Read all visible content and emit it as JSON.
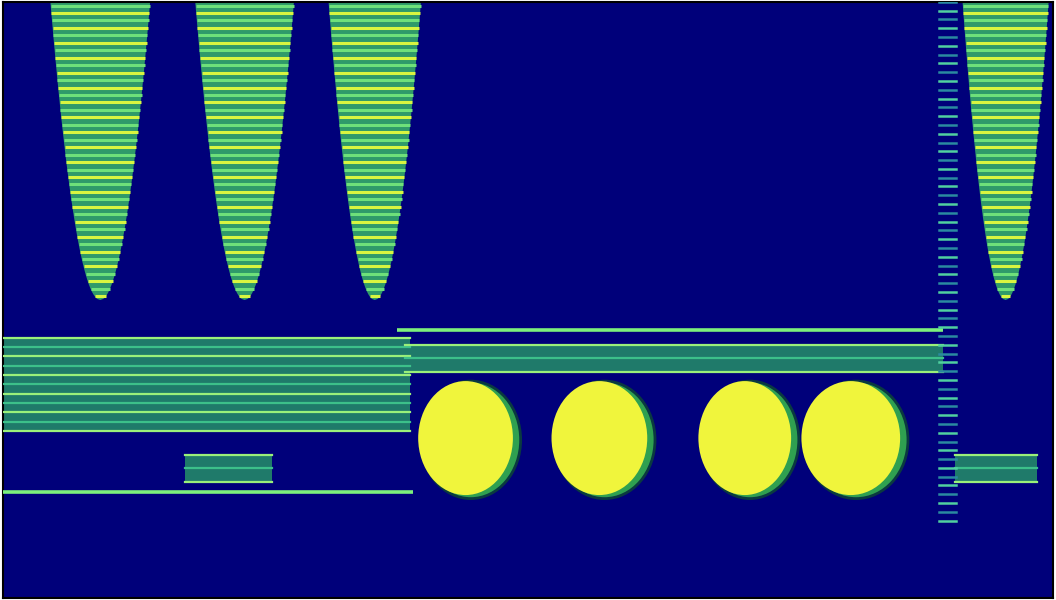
{
  "chart_data": {
    "type": "spectrogram",
    "tick_labels": false,
    "xlim": [
      0,
      100
    ],
    "ylim": [
      0,
      100
    ],
    "harmonic_sweeps": [
      {
        "t": [
          4.5,
          14.0
        ],
        "f": [
          50,
          100
        ]
      },
      {
        "t": [
          18.3,
          27.7
        ],
        "f": [
          50,
          100
        ]
      },
      {
        "t": [
          31.0,
          39.8
        ],
        "f": [
          50,
          100
        ]
      },
      {
        "t": [
          91.4,
          99.6
        ],
        "f": [
          50,
          100
        ]
      }
    ],
    "striped_bands": [
      {
        "t": [
          0,
          38.8
        ],
        "f": [
          28,
          43.7
        ]
      },
      {
        "t": [
          38.3,
          89.5
        ],
        "f": [
          38,
          42.5
        ]
      },
      {
        "t": [
          17.3,
          25.6
        ],
        "f": [
          19.5,
          24
        ]
      },
      {
        "t": [
          90.7,
          98.5
        ],
        "f": [
          19.5,
          24
        ]
      }
    ],
    "tones": [
      {
        "t": [
          0,
          39.0
        ],
        "f": 17.8
      },
      {
        "t": [
          37.5,
          89.5
        ],
        "f": 45
      }
    ],
    "blobs": [
      {
        "t": [
          39.3,
          48.8
        ],
        "f": [
          17,
          36.7
        ]
      },
      {
        "t": [
          52.0,
          61.6
        ],
        "f": [
          17,
          36.7
        ]
      },
      {
        "t": [
          66.0,
          75.3
        ],
        "f": [
          17,
          36.7
        ]
      },
      {
        "t": [
          75.8,
          85.7
        ],
        "f": [
          17,
          36.7
        ]
      }
    ],
    "clicks": [
      {
        "t": 90.0,
        "f": [
          13,
          100
        ]
      }
    ]
  }
}
